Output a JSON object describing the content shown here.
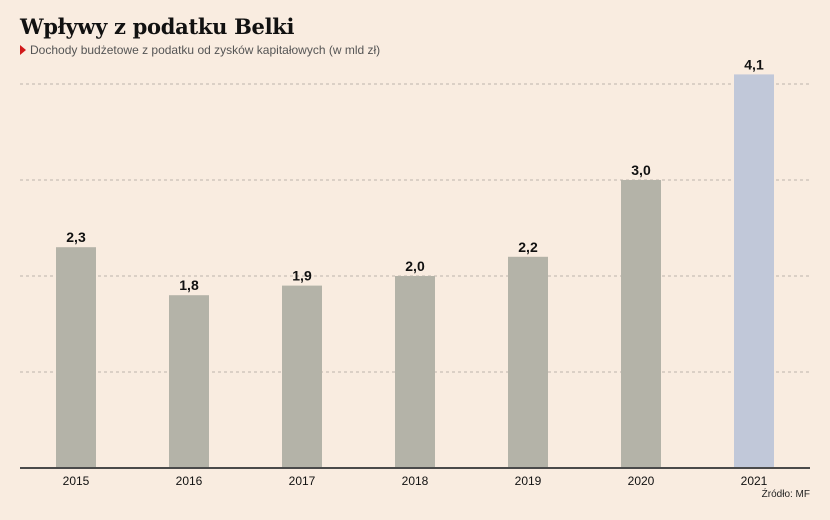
{
  "title": "Wpływy z podatku Belki",
  "subtitle": "Dochody budżetowe z podatku od zysków kapitałowych (w mld zł)",
  "source": "Źródło: MF",
  "colors": {
    "background": "#f9ece0",
    "bar_default": "#b4b3a8",
    "bar_highlight": "#c1c8d9",
    "axis": "#4a4a4a",
    "grid": "#bdb4ab",
    "marker": "#d11a1a"
  },
  "chart_data": {
    "type": "bar",
    "categories": [
      "2015",
      "2016",
      "2017",
      "2018",
      "2019",
      "2020",
      "2021"
    ],
    "values": [
      2.3,
      1.8,
      1.9,
      2.0,
      2.2,
      3.0,
      4.1
    ],
    "value_labels": [
      "2,3",
      "1,8",
      "1,9",
      "2,0",
      "2,2",
      "3,0",
      "4,1"
    ],
    "highlight_index": 6,
    "title": "Wpływy z podatku Belki",
    "xlabel": "",
    "ylabel": "",
    "ylim": [
      0,
      4.0
    ],
    "grid": true,
    "legend": "none"
  }
}
